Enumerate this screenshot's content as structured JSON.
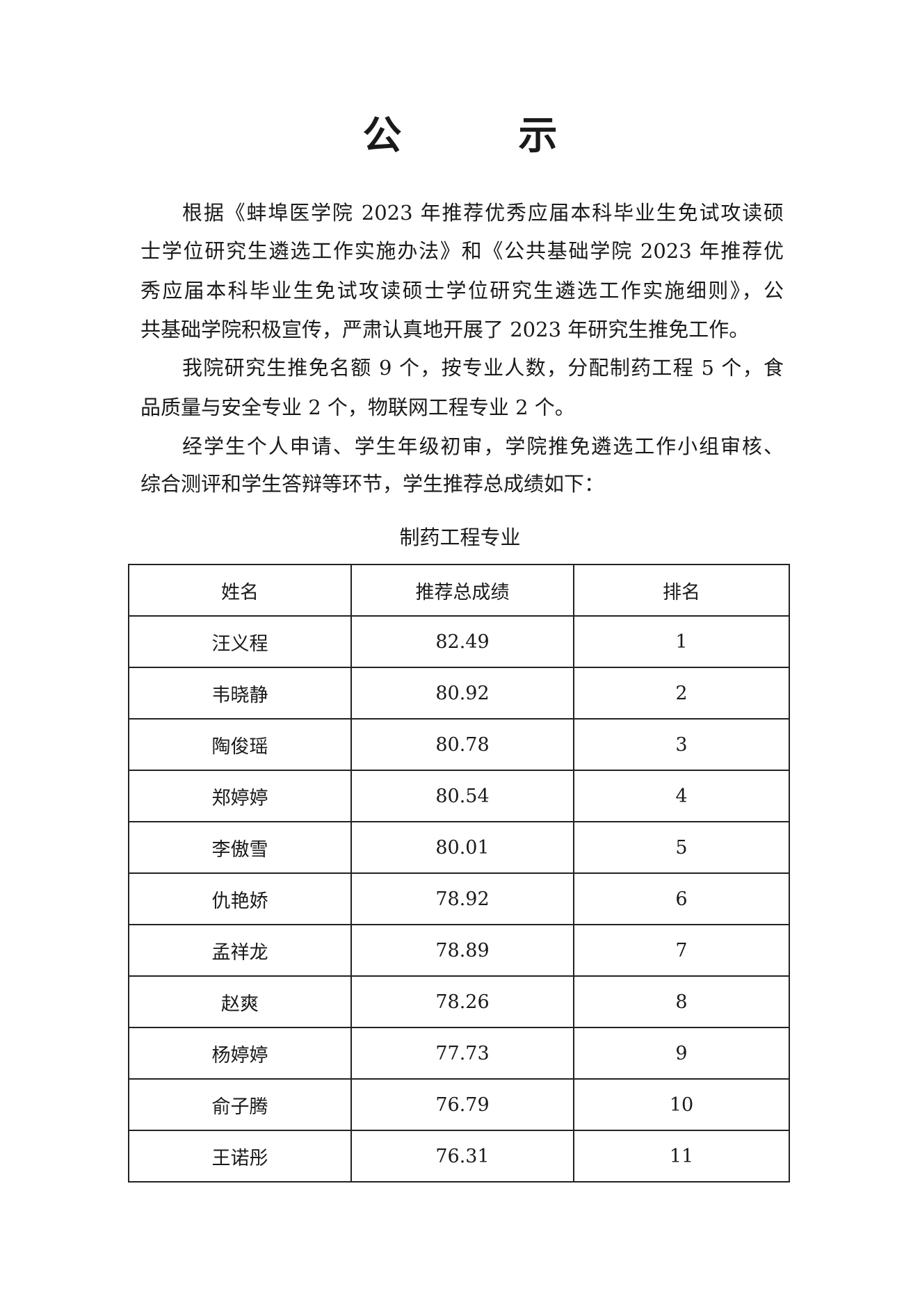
{
  "title": "公　示",
  "paragraphs": [
    {
      "lines": [
        "根据《蚌埠医学院 2023 年推荐优秀应届本科毕业生免试攻读硕",
        "士学位研究生遴选工作实施办法》和《公共基础学院 2023 年推荐优",
        "秀应届本科毕业生免试攻读硕士学位研究生遴选工作实施细则》，公",
        "共基础学院积极宣传，严肃认真地开展了 2023 年研究生推免工作。"
      ]
    },
    {
      "lines": [
        "我院研究生推免名额 9 个，按专业人数，分配制药工程 5 个，食",
        "品质量与安全专业 2 个，物联网工程专业 2 个。"
      ]
    },
    {
      "lines": [
        "经学生个人申请、学生年级初审，学院推免遴选工作小组审核、",
        "综合测评和学生答辩等环节，学生推荐总成绩如下："
      ]
    }
  ],
  "table": {
    "caption": "制药工程专业",
    "headers": [
      "姓名",
      "推荐总成绩",
      "排名"
    ],
    "rows": [
      [
        "汪义程",
        "82.49",
        "1"
      ],
      [
        "韦晓静",
        "80.92",
        "2"
      ],
      [
        "陶俊瑶",
        "80.78",
        "3"
      ],
      [
        "郑婷婷",
        "80.54",
        "4"
      ],
      [
        "李傲雪",
        "80.01",
        "5"
      ],
      [
        "仇艳娇",
        "78.92",
        "6"
      ],
      [
        "孟祥龙",
        "78.89",
        "7"
      ],
      [
        "赵爽",
        "78.26",
        "8"
      ],
      [
        "杨婷婷",
        "77.73",
        "9"
      ],
      [
        "俞子腾",
        "76.79",
        "10"
      ],
      [
        "王诺彤",
        "76.31",
        "11"
      ]
    ]
  }
}
